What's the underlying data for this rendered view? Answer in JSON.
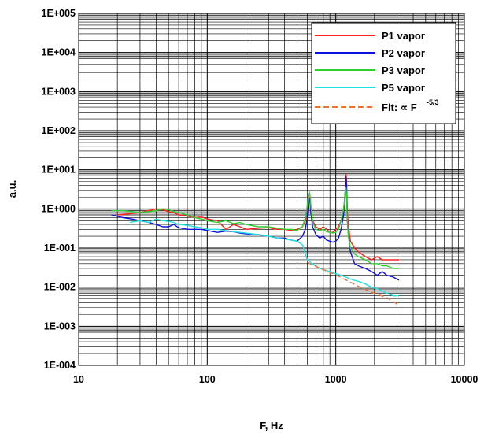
{
  "chart_data": {
    "type": "line",
    "title": "",
    "xlabel": "F, Hz",
    "ylabel": "a.u.",
    "x_scale": "log",
    "y_scale": "log",
    "xlim": [
      10,
      10000
    ],
    "ylim": [
      0.0001,
      100000
    ],
    "grid": true,
    "x_ticks": [
      {
        "value": 10,
        "label": "10"
      },
      {
        "value": 100,
        "label": "100"
      },
      {
        "value": 1000,
        "label": "1000"
      },
      {
        "value": 10000,
        "label": "10000"
      }
    ],
    "y_ticks": [
      {
        "value": 100000,
        "label": "1E+005"
      },
      {
        "value": 10000,
        "label": "1E+004"
      },
      {
        "value": 1000,
        "label": "1E+003"
      },
      {
        "value": 100,
        "label": "1E+002"
      },
      {
        "value": 10,
        "label": "1E+001"
      },
      {
        "value": 1,
        "label": "1E+000"
      },
      {
        "value": 0.1,
        "label": "1E-001"
      },
      {
        "value": 0.01,
        "label": "1E-002"
      },
      {
        "value": 0.001,
        "label": "1E-003"
      },
      {
        "value": 0.0001,
        "label": "1E-004"
      }
    ],
    "legend_position": "top-right",
    "series": [
      {
        "name": "P1 vapor",
        "color": "#ff2020",
        "x": [
          20,
          25,
          30,
          35,
          40,
          45,
          50,
          55,
          60,
          70,
          80,
          90,
          100,
          120,
          140,
          160,
          180,
          200,
          250,
          300,
          350,
          400,
          450,
          500,
          550,
          580,
          600,
          610,
          620,
          630,
          640,
          660,
          700,
          750,
          800,
          850,
          900,
          950,
          1000,
          1050,
          1100,
          1150,
          1180,
          1200,
          1210,
          1220,
          1230,
          1250,
          1300,
          1400,
          1500,
          1700,
          1900,
          2100,
          2300,
          2500,
          2800,
          3100
        ],
        "y": [
          0.7,
          0.75,
          0.8,
          0.9,
          1.0,
          0.95,
          0.85,
          0.8,
          0.7,
          0.65,
          0.6,
          0.62,
          0.55,
          0.5,
          0.3,
          0.4,
          0.35,
          0.3,
          0.32,
          0.33,
          0.3,
          0.3,
          0.28,
          0.3,
          0.35,
          0.5,
          0.9,
          1.6,
          2.0,
          1.8,
          1.0,
          0.5,
          0.35,
          0.3,
          0.35,
          0.3,
          0.25,
          0.25,
          0.3,
          0.35,
          0.5,
          0.9,
          2.5,
          8.0,
          6.0,
          2.0,
          0.8,
          0.4,
          0.15,
          0.1,
          0.08,
          0.06,
          0.05,
          0.06,
          0.05,
          0.05,
          0.05,
          0.05
        ]
      },
      {
        "name": "P2 vapor",
        "color": "#1010e0",
        "x": [
          18,
          22,
          26,
          30,
          35,
          40,
          45,
          50,
          55,
          60,
          70,
          80,
          90,
          100,
          120,
          140,
          160,
          180,
          200,
          250,
          300,
          350,
          400,
          450,
          500,
          550,
          580,
          600,
          610,
          620,
          630,
          640,
          660,
          700,
          750,
          800,
          850,
          900,
          950,
          1000,
          1050,
          1100,
          1150,
          1180,
          1200,
          1210,
          1220,
          1230,
          1250,
          1300,
          1400,
          1500,
          1700,
          1900,
          2100,
          2300,
          2500,
          2800,
          3100
        ],
        "y": [
          0.7,
          0.6,
          0.55,
          0.5,
          0.45,
          0.4,
          0.35,
          0.35,
          0.4,
          0.33,
          0.3,
          0.3,
          0.3,
          0.28,
          0.25,
          0.27,
          0.26,
          0.24,
          0.23,
          0.22,
          0.2,
          0.18,
          0.18,
          0.16,
          0.15,
          0.2,
          0.3,
          0.6,
          1.2,
          1.8,
          1.5,
          0.8,
          0.35,
          0.22,
          0.18,
          0.2,
          0.16,
          0.15,
          0.14,
          0.15,
          0.18,
          0.3,
          0.7,
          2.0,
          6.5,
          5.0,
          1.5,
          0.5,
          0.25,
          0.08,
          0.04,
          0.035,
          0.03,
          0.025,
          0.02,
          0.025,
          0.02,
          0.018,
          0.015
        ]
      },
      {
        "name": "P3 vapor",
        "color": "#30d030",
        "x": [
          18,
          22,
          26,
          30,
          35,
          40,
          45,
          50,
          55,
          60,
          70,
          80,
          90,
          100,
          120,
          140,
          160,
          180,
          200,
          250,
          300,
          350,
          400,
          450,
          500,
          550,
          580,
          600,
          610,
          620,
          630,
          640,
          660,
          700,
          750,
          800,
          850,
          900,
          950,
          1000,
          1050,
          1100,
          1150,
          1180,
          1200,
          1210,
          1220,
          1230,
          1250,
          1300,
          1400,
          1500,
          1700,
          1900,
          2100,
          2300,
          2500,
          2800,
          3100
        ],
        "y": [
          0.9,
          0.9,
          0.85,
          0.8,
          0.85,
          0.9,
          1.0,
          0.95,
          0.85,
          0.8,
          0.7,
          0.6,
          0.55,
          0.5,
          0.45,
          0.5,
          0.42,
          0.45,
          0.4,
          0.35,
          0.35,
          0.32,
          0.3,
          0.3,
          0.28,
          0.35,
          0.6,
          1.2,
          2.2,
          2.8,
          2.2,
          1.2,
          0.45,
          0.3,
          0.28,
          0.3,
          0.26,
          0.25,
          0.24,
          0.25,
          0.3,
          0.5,
          1.0,
          2.2,
          3.5,
          2.5,
          1.0,
          0.5,
          0.2,
          0.1,
          0.07,
          0.06,
          0.05,
          0.04,
          0.04,
          0.035,
          0.035,
          0.03,
          0.03
        ]
      },
      {
        "name": "P5 vapor",
        "color": "#20e0e0",
        "x": [
          25,
          30,
          35,
          40,
          45,
          50,
          55,
          60,
          70,
          80,
          90,
          100,
          120,
          140,
          160,
          180,
          200,
          250,
          300,
          350,
          400,
          450,
          500,
          550,
          600,
          650,
          700,
          750,
          800,
          900,
          1000,
          1100,
          1200,
          1300,
          1500,
          1700,
          1900,
          2100,
          2300,
          2500,
          2800,
          3100
        ],
        "y": [
          0.45,
          0.5,
          0.45,
          0.55,
          0.5,
          0.48,
          0.45,
          0.4,
          0.38,
          0.35,
          0.33,
          0.3,
          0.3,
          0.28,
          0.26,
          0.25,
          0.24,
          0.22,
          0.2,
          0.18,
          0.17,
          0.16,
          0.15,
          0.12,
          0.05,
          0.04,
          0.035,
          0.03,
          0.028,
          0.025,
          0.022,
          0.02,
          0.018,
          0.016,
          0.014,
          0.012,
          0.01,
          0.009,
          0.008,
          0.007,
          0.006,
          0.006
        ]
      },
      {
        "name": "Fit: ∝ F",
        "name_superscript": "-5/3",
        "color": "#f07030",
        "dashed": true,
        "x": [
          600,
          800,
          1000,
          1300,
          1600,
          2000,
          2500,
          3000
        ],
        "y": [
          0.0424,
          0.028,
          0.0206,
          0.0133,
          0.0094,
          0.007,
          0.0053,
          0.0037
        ]
      }
    ]
  }
}
